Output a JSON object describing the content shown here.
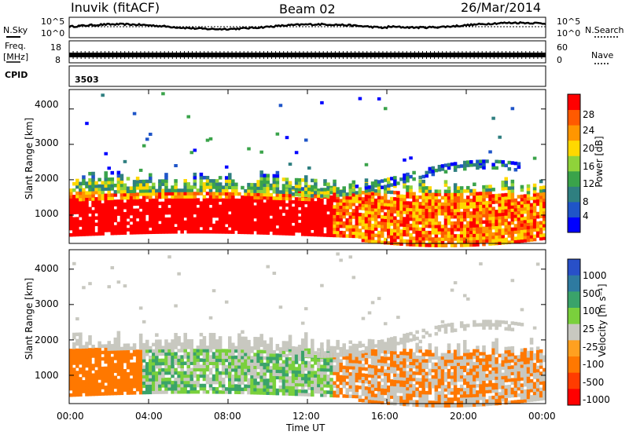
{
  "header": {
    "station": "Inuvik (fitACF)",
    "beam": "Beam 02",
    "date": "26/Mar/2014"
  },
  "top_panels": {
    "nsky_label": "N.Sky",
    "nsearch_label": "N.Search",
    "noise_ticks": [
      "10^5",
      "10^0"
    ],
    "freq_label": "Freq.",
    "freq_unit": "[MHz]",
    "freq_ticks": [
      "18",
      "8"
    ],
    "nave_label": "Nave",
    "nave_ticks": [
      "60",
      "0"
    ],
    "cpid_label": "CPID",
    "cpid_value": "3503"
  },
  "chart_data": [
    {
      "type": "heatmap",
      "name": "power",
      "ylabel": "Slant Range [km]",
      "yticks": [
        "4000",
        "3000",
        "2000",
        "1000"
      ],
      "ylim": [
        200,
        4550
      ],
      "xlim": [
        0,
        24
      ],
      "colorbar": {
        "label": "Power [dB]",
        "ticks": [
          "28",
          "24",
          "20",
          "16",
          "12",
          "8",
          "4"
        ],
        "range": [
          0,
          30
        ],
        "colors": [
          "#0000ff",
          "#1f55c8",
          "#2f7f80",
          "#3aa34a",
          "#8fd33a",
          "#ffd800",
          "#ff9600",
          "#ff5a00",
          "#ff0000"
        ]
      }
    },
    {
      "type": "heatmap",
      "name": "velocity",
      "ylabel": "Slant Range [km]",
      "yticks": [
        "4000",
        "3000",
        "2000",
        "1000"
      ],
      "ylim": [
        200,
        4550
      ],
      "xlim": [
        0,
        24
      ],
      "xlabel": "Time UT",
      "xticks": [
        "00:00",
        "04:00",
        "08:00",
        "12:00",
        "16:00",
        "20:00",
        "00:00"
      ],
      "colorbar": {
        "label": "Velocity [m s⁻¹]",
        "ticks": [
          "1000",
          "500",
          "100",
          "25",
          "-25",
          "-100",
          "-500",
          "-1000"
        ],
        "colors": [
          "#2850c8",
          "#2e7aa0",
          "#3aa36a",
          "#7ad03c",
          "#c8c8c0",
          "#ffa020",
          "#ff7800",
          "#ff3c00",
          "#ff0000"
        ]
      }
    }
  ]
}
